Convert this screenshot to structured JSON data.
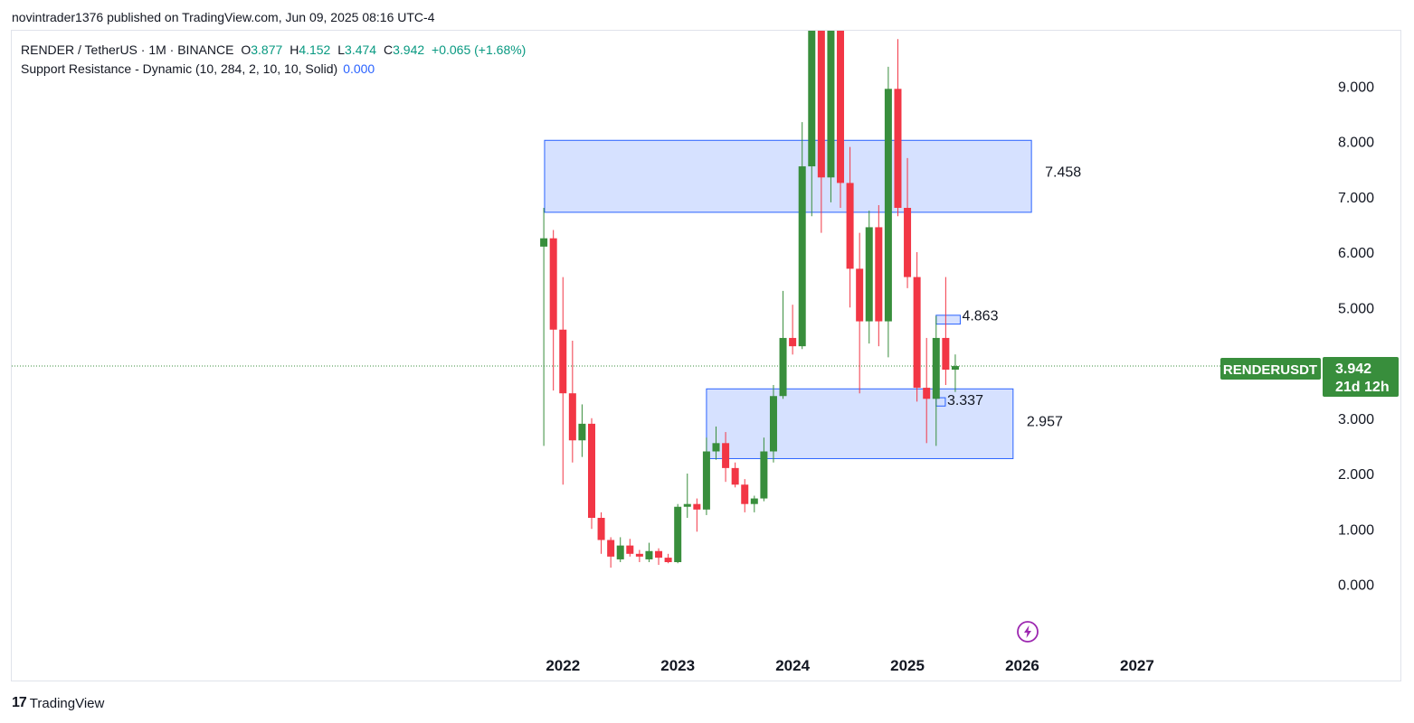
{
  "header": {
    "text": "novintrader1376 published on TradingView.com, Jun 09, 2025 08:16 UTC-4"
  },
  "legend": {
    "symbol": "RENDER / TetherUS · 1M · BINANCE",
    "open_key": "O",
    "open": "3.877",
    "high_key": "H",
    "high": "4.152",
    "low_key": "L",
    "low": "3.474",
    "close_key": "C",
    "close": "3.942",
    "change": "+0.065 (+1.68%)",
    "indicator": "Support Resistance - Dynamic (10, 284, 2, 10, 10, Solid)",
    "indicator_value": "0.000"
  },
  "price_tag": {
    "symbol": "RENDERUSDT",
    "price": "3.942",
    "countdown": "21d 12h"
  },
  "footer": {
    "brand": "TradingView",
    "logo": "17"
  },
  "colors": {
    "up": "#388e3c",
    "down": "#f23645",
    "zone_fill": "#d1deff",
    "zone_border": "#2962ff",
    "price_line": "#388e3c",
    "tag_bg": "#388e3c",
    "lightning": "#9c27b0"
  },
  "icons": {
    "flash": "lightning-icon"
  },
  "chart_data": {
    "type": "candlestick",
    "interval": "1M",
    "y_ticks": [
      "9.000",
      "8.000",
      "7.000",
      "6.000",
      "5.000",
      "3.000",
      "2.000",
      "1.000",
      "0.000"
    ],
    "x_ticks": [
      "2022",
      "2023",
      "2024",
      "2025",
      "2026",
      "2027"
    ],
    "x_tick_years": [
      2022,
      2023,
      2024,
      2025,
      2026,
      2027
    ],
    "ylim": [
      -1.2,
      10.0
    ],
    "xlim": [
      2017.2,
      2028.6
    ],
    "zones": [
      {
        "x0": 2021.84,
        "x1": 2026.08,
        "y0": 6.72,
        "y1": 8.02,
        "label": "7.458",
        "label_y": 7.458
      },
      {
        "x0": 2023.25,
        "x1": 2025.92,
        "y0": 2.27,
        "y1": 3.53,
        "label": "2.957",
        "label_y": 2.957
      },
      {
        "x0": 2025.25,
        "x1": 2025.46,
        "y0": 4.7,
        "y1": 4.86,
        "label": "4.863",
        "label_y": 4.863
      },
      {
        "x0": 2025.25,
        "x1": 2025.33,
        "y0": 3.22,
        "y1": 3.37,
        "label": "3.337",
        "label_y": 3.337
      }
    ],
    "last_price": 3.942,
    "candles": [
      {
        "t": "2021-11",
        "o": 6.1,
        "h": 6.8,
        "l": 2.5,
        "c": 6.25
      },
      {
        "t": "2021-12",
        "o": 6.25,
        "h": 6.4,
        "l": 3.5,
        "c": 4.6
      },
      {
        "t": "2022-01",
        "o": 4.6,
        "h": 5.55,
        "l": 1.8,
        "c": 3.45
      },
      {
        "t": "2022-02",
        "o": 3.45,
        "h": 4.4,
        "l": 2.2,
        "c": 2.6
      },
      {
        "t": "2022-03",
        "o": 2.6,
        "h": 3.25,
        "l": 2.3,
        "c": 2.9
      },
      {
        "t": "2022-04",
        "o": 2.9,
        "h": 3.0,
        "l": 1.0,
        "c": 1.2
      },
      {
        "t": "2022-05",
        "o": 1.2,
        "h": 1.3,
        "l": 0.55,
        "c": 0.8
      },
      {
        "t": "2022-06",
        "o": 0.8,
        "h": 0.85,
        "l": 0.3,
        "c": 0.5
      },
      {
        "t": "2022-07",
        "o": 0.45,
        "h": 0.85,
        "l": 0.4,
        "c": 0.7
      },
      {
        "t": "2022-08",
        "o": 0.7,
        "h": 0.82,
        "l": 0.5,
        "c": 0.55
      },
      {
        "t": "2022-09",
        "o": 0.55,
        "h": 0.62,
        "l": 0.4,
        "c": 0.5
      },
      {
        "t": "2022-10",
        "o": 0.45,
        "h": 0.75,
        "l": 0.4,
        "c": 0.6
      },
      {
        "t": "2022-11",
        "o": 0.6,
        "h": 0.65,
        "l": 0.35,
        "c": 0.48
      },
      {
        "t": "2022-12",
        "o": 0.48,
        "h": 0.55,
        "l": 0.38,
        "c": 0.4
      },
      {
        "t": "2023-01",
        "o": 0.4,
        "h": 1.45,
        "l": 0.38,
        "c": 1.4
      },
      {
        "t": "2023-02",
        "o": 1.4,
        "h": 2.0,
        "l": 1.2,
        "c": 1.45
      },
      {
        "t": "2023-03",
        "o": 1.45,
        "h": 1.55,
        "l": 0.95,
        "c": 1.35
      },
      {
        "t": "2023-04",
        "o": 1.35,
        "h": 2.65,
        "l": 1.25,
        "c": 2.4
      },
      {
        "t": "2023-05",
        "o": 2.4,
        "h": 2.85,
        "l": 2.25,
        "c": 2.55
      },
      {
        "t": "2023-06",
        "o": 2.55,
        "h": 2.75,
        "l": 1.85,
        "c": 2.1
      },
      {
        "t": "2023-07",
        "o": 2.1,
        "h": 2.2,
        "l": 1.75,
        "c": 1.8
      },
      {
        "t": "2023-08",
        "o": 1.8,
        "h": 1.9,
        "l": 1.3,
        "c": 1.45
      },
      {
        "t": "2023-09",
        "o": 1.45,
        "h": 1.6,
        "l": 1.3,
        "c": 1.55
      },
      {
        "t": "2023-10",
        "o": 1.55,
        "h": 2.65,
        "l": 1.5,
        "c": 2.4
      },
      {
        "t": "2023-11",
        "o": 2.4,
        "h": 3.6,
        "l": 2.2,
        "c": 3.4
      },
      {
        "t": "2023-12",
        "o": 3.4,
        "h": 5.3,
        "l": 3.35,
        "c": 4.45
      },
      {
        "t": "2024-01",
        "o": 4.45,
        "h": 5.05,
        "l": 4.15,
        "c": 4.3
      },
      {
        "t": "2024-02",
        "o": 4.3,
        "h": 8.35,
        "l": 4.25,
        "c": 7.55
      },
      {
        "t": "2024-03",
        "o": 7.55,
        "h": 13.5,
        "l": 6.65,
        "c": 12.0
      },
      {
        "t": "2024-04",
        "o": 12.0,
        "h": 12.4,
        "l": 6.35,
        "c": 7.35
      },
      {
        "t": "2024-05",
        "o": 7.35,
        "h": 11.1,
        "l": 6.9,
        "c": 10.2
      },
      {
        "t": "2024-06",
        "o": 10.2,
        "h": 10.4,
        "l": 6.8,
        "c": 7.25
      },
      {
        "t": "2024-07",
        "o": 7.25,
        "h": 7.9,
        "l": 5.0,
        "c": 5.7
      },
      {
        "t": "2024-08",
        "o": 5.7,
        "h": 6.35,
        "l": 3.45,
        "c": 4.75
      },
      {
        "t": "2024-09",
        "o": 4.75,
        "h": 6.75,
        "l": 4.35,
        "c": 6.45
      },
      {
        "t": "2024-10",
        "o": 6.45,
        "h": 6.85,
        "l": 4.3,
        "c": 4.75
      },
      {
        "t": "2024-11",
        "o": 4.75,
        "h": 9.35,
        "l": 4.1,
        "c": 8.95
      },
      {
        "t": "2024-12",
        "o": 8.95,
        "h": 9.85,
        "l": 6.65,
        "c": 6.8
      },
      {
        "t": "2025-01",
        "o": 6.8,
        "h": 7.7,
        "l": 5.35,
        "c": 5.55
      },
      {
        "t": "2025-02",
        "o": 5.55,
        "h": 6.0,
        "l": 3.3,
        "c": 3.55
      },
      {
        "t": "2025-03",
        "o": 3.55,
        "h": 4.45,
        "l": 2.55,
        "c": 3.35
      },
      {
        "t": "2025-04",
        "o": 3.35,
        "h": 4.85,
        "l": 2.5,
        "c": 4.45
      },
      {
        "t": "2025-05",
        "o": 4.45,
        "h": 5.55,
        "l": 3.6,
        "c": 3.877
      },
      {
        "t": "2025-06",
        "o": 3.877,
        "h": 4.152,
        "l": 3.474,
        "c": 3.942
      }
    ]
  }
}
